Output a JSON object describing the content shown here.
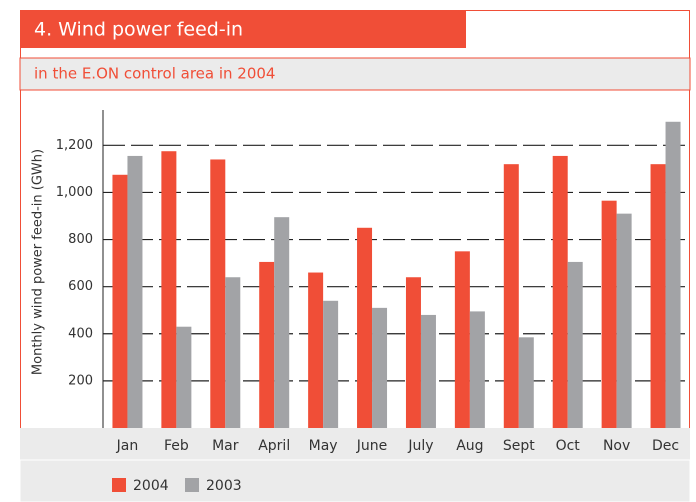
{
  "chart_data": {
    "type": "bar",
    "title": "4. Wind power feed-in",
    "subtitle": "in the E.ON control area in 2004",
    "y_label": "Monthly wind power feed-in (GWh)",
    "categories": [
      "Jan",
      "Feb",
      "Mar",
      "April",
      "May",
      "June",
      "July",
      "Aug",
      "Sept",
      "Oct",
      "Nov",
      "Dec"
    ],
    "series": [
      {
        "name": "2004",
        "color": "#f04e37",
        "values": [
          1075,
          1175,
          1140,
          705,
          660,
          850,
          640,
          750,
          1120,
          1155,
          965,
          1120
        ]
      },
      {
        "name": "2003",
        "color": "#a2a3a6",
        "values": [
          1155,
          430,
          640,
          895,
          540,
          510,
          480,
          495,
          385,
          705,
          910,
          1300
        ]
      }
    ],
    "ylim": [
      0,
      1350
    ],
    "yticks": [
      200,
      400,
      600,
      800,
      {
        "value": 1000,
        "label": "1,000"
      },
      {
        "value": 1200,
        "label": "1,200"
      }
    ],
    "grid": true
  }
}
